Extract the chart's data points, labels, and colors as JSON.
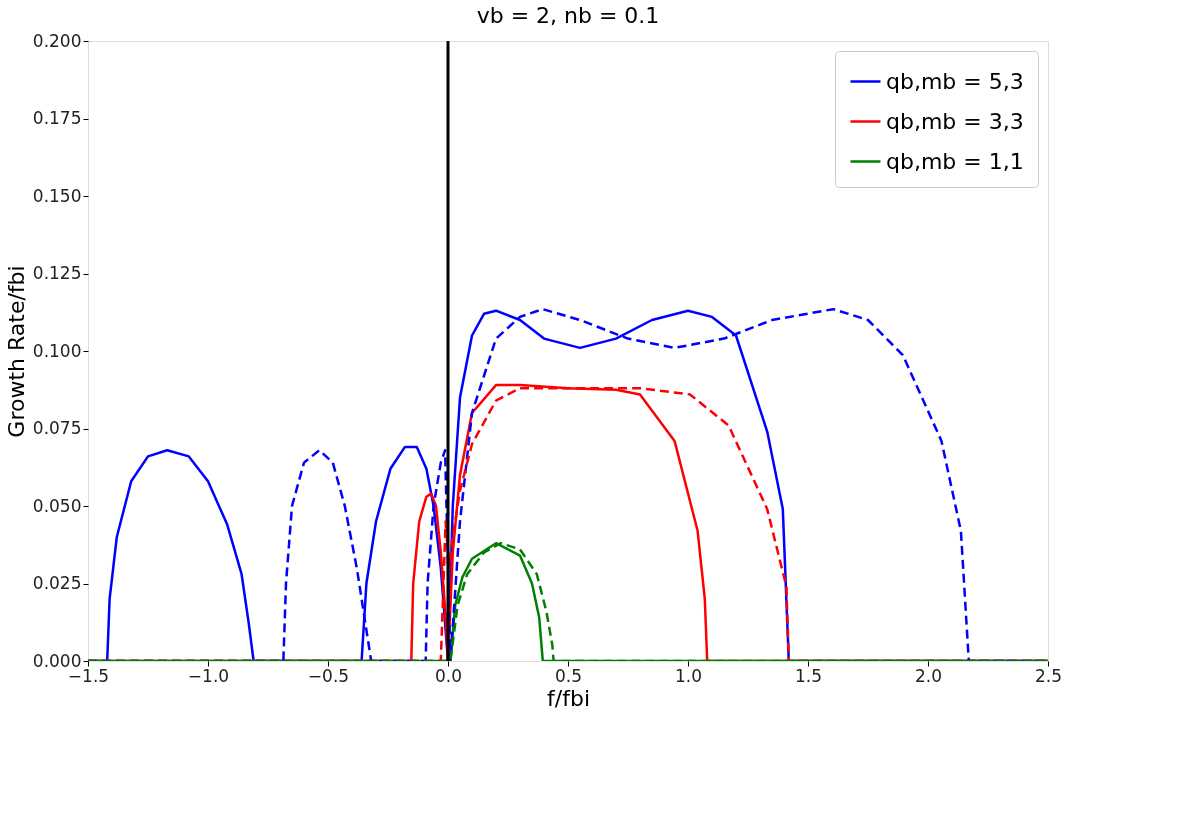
{
  "chart_data": {
    "type": "line",
    "title": "vb = 2, nb = 0.1",
    "xlabel": "f/fbi",
    "ylabel": "Growth Rate/fbi",
    "xlim": [
      -1.5,
      2.5
    ],
    "xticks": [
      {
        "value": -1.5,
        "label": "−1.5"
      },
      {
        "value": -1.0,
        "label": "−1.0"
      },
      {
        "value": -0.5,
        "label": "−0.5"
      },
      {
        "value": 0,
        "label": "0.0"
      },
      {
        "value": 0.5,
        "label": "0.5"
      },
      {
        "value": 1.0,
        "label": "1.0"
      },
      {
        "value": 1.5,
        "label": "1.5"
      },
      {
        "value": 2.0,
        "label": "2.0"
      },
      {
        "value": 2.5,
        "label": "2.5"
      }
    ],
    "ylim": [
      0,
      0.2
    ],
    "yticks": [
      {
        "value": 0,
        "label": "0.000"
      },
      {
        "value": 0.025,
        "label": "0.025"
      },
      {
        "value": 0.05,
        "label": "0.050"
      },
      {
        "value": 0.075,
        "label": "0.075"
      },
      {
        "value": 0.1,
        "label": "0.100"
      },
      {
        "value": 0.125,
        "label": "0.125"
      },
      {
        "value": 0.15,
        "label": "0.150"
      },
      {
        "value": 0.175,
        "label": "0.175"
      },
      {
        "value": 0.2,
        "label": "0.200"
      }
    ],
    "grid": false,
    "legend": "top right",
    "marker": "none",
    "ref_lines": [
      {
        "axis": "x",
        "value": 0,
        "color": "#000000"
      }
    ],
    "series": [
      {
        "name": "qb,mb = 5,3",
        "color": "#0000ff",
        "line_style": "solid",
        "x": [
          -1.5,
          -1.42,
          -1.41,
          -1.38,
          -1.32,
          -1.25,
          -1.17,
          -1.08,
          -1.0,
          -0.92,
          -0.86,
          -0.83,
          -0.81,
          -0.36,
          -0.34,
          -0.3,
          -0.24,
          -0.18,
          -0.13,
          -0.09,
          -0.06,
          -0.03,
          0.0,
          0.02,
          0.05,
          0.1,
          0.15,
          0.2,
          0.3,
          0.4,
          0.55,
          0.7,
          0.85,
          1.0,
          1.1,
          1.2,
          1.33,
          1.395,
          1.42,
          2.5
        ],
        "values": [
          0,
          0,
          0.02,
          0.04,
          0.058,
          0.066,
          0.068,
          0.066,
          0.058,
          0.044,
          0.028,
          0.012,
          0,
          0,
          0.025,
          0.045,
          0.062,
          0.069,
          0.069,
          0.062,
          0.05,
          0.03,
          0.0,
          0.05,
          0.085,
          0.105,
          0.112,
          0.113,
          0.11,
          0.104,
          0.101,
          0.104,
          0.11,
          0.113,
          0.111,
          0.105,
          0.074,
          0.049,
          0,
          0
        ]
      },
      {
        "name": "qb,mb = 3,3",
        "color": "#ff0000",
        "line_style": "solid",
        "x": [
          -1.5,
          -0.153,
          -0.145,
          -0.12,
          -0.09,
          -0.07,
          -0.05,
          -0.03,
          -0.01,
          0.0,
          0.02,
          0.05,
          0.1,
          0.2,
          0.3,
          0.5,
          0.7,
          0.8,
          0.944,
          1.04,
          1.07,
          1.08,
          2.5
        ],
        "values": [
          0,
          0,
          0.025,
          0.045,
          0.053,
          0.054,
          0.05,
          0.035,
          0.015,
          0.0,
          0.035,
          0.06,
          0.08,
          0.089,
          0.089,
          0.088,
          0.0875,
          0.086,
          0.071,
          0.042,
          0.02,
          0,
          0
        ]
      },
      {
        "name": "qb,mb = 1,1",
        "color": "#008000",
        "line_style": "solid",
        "x": [
          -1.5,
          0.01,
          0.03,
          0.06,
          0.1,
          0.2,
          0.3,
          0.35,
          0.38,
          0.395,
          2.5
        ],
        "values": [
          0,
          0,
          0.018,
          0.027,
          0.033,
          0.038,
          0.034,
          0.025,
          0.014,
          0,
          0
        ]
      },
      {
        "color": "#0000ff",
        "line_style": "dashed",
        "x": [
          -1.5,
          -0.686,
          -0.675,
          -0.65,
          -0.6,
          -0.536,
          -0.48,
          -0.43,
          -0.38,
          -0.35,
          -0.32,
          -0.093,
          -0.085,
          -0.06,
          -0.03,
          -0.012,
          0.0,
          0.01,
          0.05,
          0.1,
          0.2,
          0.3,
          0.395,
          0.55,
          0.75,
          0.944,
          1.15,
          1.35,
          1.605,
          1.75,
          1.895,
          2.056,
          2.137,
          2.17,
          2.5
        ],
        "values": [
          0,
          0,
          0.025,
          0.05,
          0.064,
          0.068,
          0.064,
          0.05,
          0.03,
          0.015,
          0,
          0,
          0.025,
          0.05,
          0.064,
          0.068,
          0.03,
          0,
          0.045,
          0.08,
          0.104,
          0.111,
          0.1135,
          0.11,
          0.104,
          0.101,
          0.104,
          0.11,
          0.1135,
          0.11,
          0.0987,
          0.071,
          0.042,
          0,
          0
        ]
      },
      {
        "color": "#ff0000",
        "line_style": "dashed",
        "x": [
          -1.5,
          -0.03,
          -0.01,
          0.005,
          0.02,
          0.05,
          0.1,
          0.2,
          0.3,
          0.5,
          0.8,
          1.008,
          1.169,
          1.33,
          1.41,
          1.42,
          2.5
        ],
        "values": [
          0,
          0,
          0.045,
          0.03,
          0.04,
          0.055,
          0.07,
          0.084,
          0.088,
          0.088,
          0.088,
          0.086,
          0.076,
          0.049,
          0.024,
          0,
          0
        ]
      },
      {
        "color": "#008000",
        "line_style": "dashed",
        "x": [
          -1.5,
          0.01,
          0.04,
          0.08,
          0.15,
          0.22,
          0.3,
          0.37,
          0.41,
          0.435,
          0.44,
          2.5
        ],
        "values": [
          0,
          0,
          0.018,
          0.028,
          0.035,
          0.038,
          0.036,
          0.028,
          0.016,
          0.005,
          0,
          0
        ]
      }
    ]
  }
}
